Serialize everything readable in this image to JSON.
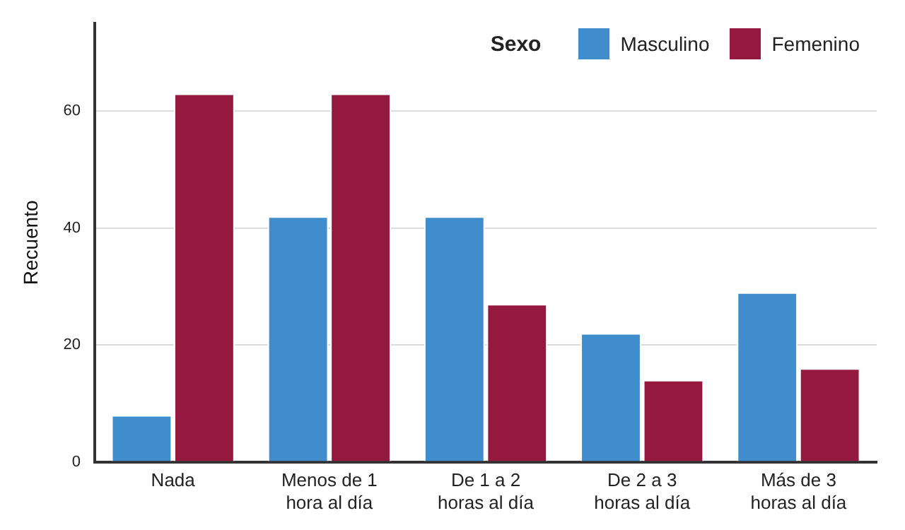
{
  "chart_data": {
    "type": "bar",
    "ylabel": "Recuento",
    "legend_title": "Sexo",
    "categories": [
      "Nada",
      "Menos de 1\nhora al día",
      "De 1 a 2\nhoras al día",
      "De 2 a 3\nhoras al día",
      "Más de 3\nhoras al día"
    ],
    "series": [
      {
        "name": "Masculino",
        "color": "#3f8dcd",
        "values": [
          8,
          42,
          42,
          22,
          29
        ]
      },
      {
        "name": "Femenino",
        "color": "#95183e",
        "values": [
          63,
          63,
          27,
          14,
          16
        ]
      }
    ],
    "ylim": [
      0,
      75
    ],
    "yticks": [
      0,
      20,
      40,
      60
    ],
    "grid": "y",
    "legend": "top right"
  }
}
